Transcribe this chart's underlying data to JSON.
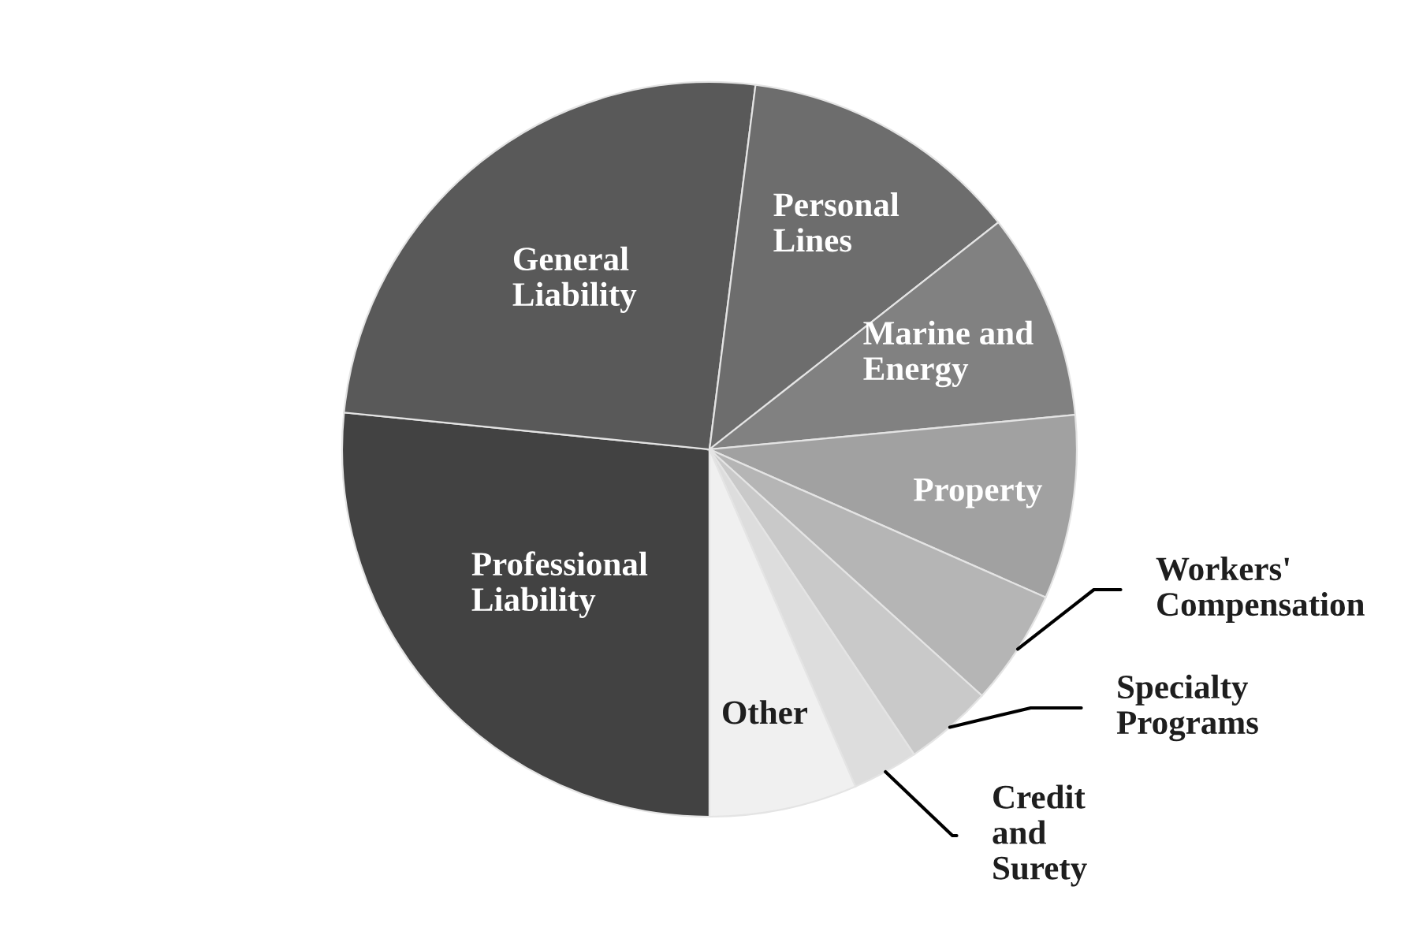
{
  "chart_data": {
    "type": "pie",
    "categories": [
      "Professional\nLiability",
      "General\nLiability",
      "Personal\nLines",
      "Marine and\nEnergy",
      "Property",
      "Workers'\nCompensation",
      "Specialty\nPrograms",
      "Credit\nand\nSurety",
      "Other"
    ],
    "values": [
      26.6,
      25.4,
      12.4,
      9.1,
      8.1,
      5.1,
      3.9,
      2.9,
      6.5
    ],
    "colors": [
      "#424242",
      "#595959",
      "#6d6d6d",
      "#818181",
      "#a1a1a1",
      "#b5b5b5",
      "#c9c9c9",
      "#dddddd",
      "#f0f0f0"
    ]
  }
}
